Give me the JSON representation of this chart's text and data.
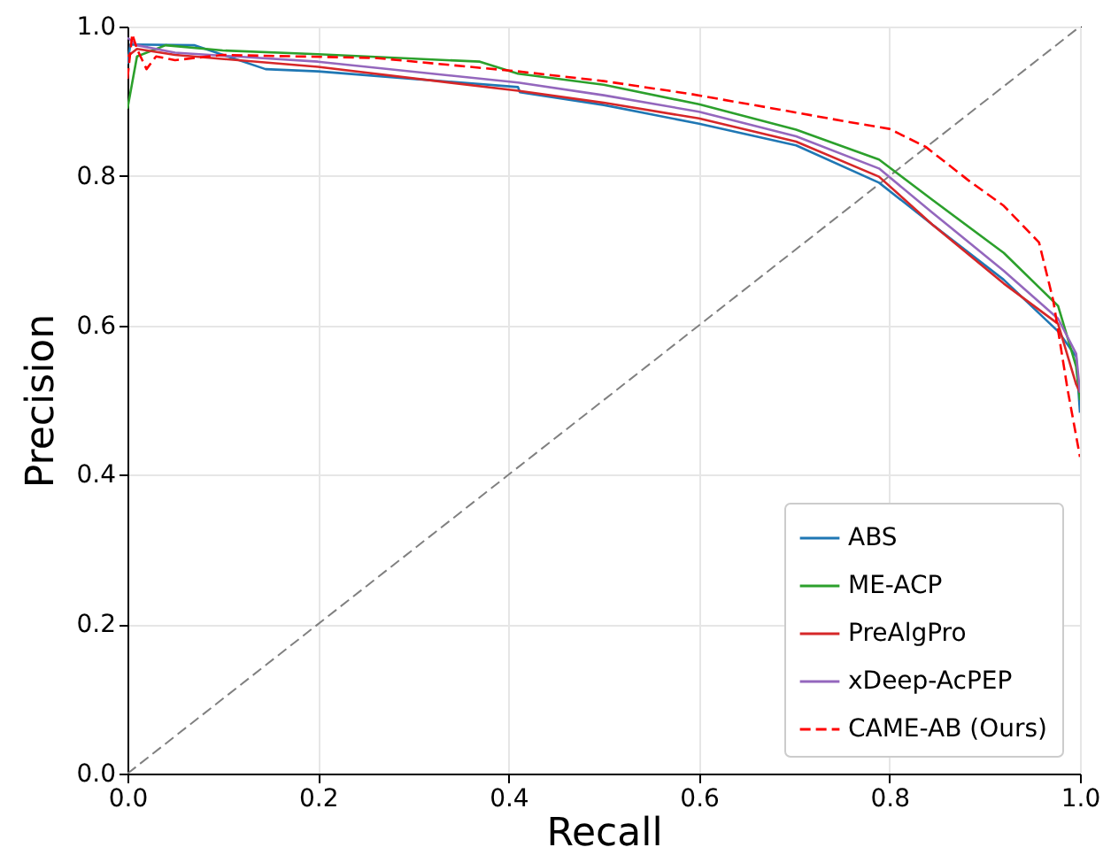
{
  "chart_data": {
    "type": "line",
    "xlabel": "Recall",
    "ylabel": "Precision",
    "xlim": [
      0,
      1
    ],
    "ylim": [
      0,
      1
    ],
    "xticks": [
      {
        "value": 0,
        "label": "0.0"
      },
      {
        "value": 0.2,
        "label": "0.2"
      },
      {
        "value": 0.4,
        "label": "0.4"
      },
      {
        "value": 0.6,
        "label": "0.6"
      },
      {
        "value": 0.8,
        "label": "0.8"
      },
      {
        "value": 1,
        "label": "1.0"
      }
    ],
    "yticks": [
      {
        "value": 0,
        "label": "0.0"
      },
      {
        "value": 0.2,
        "label": "0.2"
      },
      {
        "value": 0.4,
        "label": "0.4"
      },
      {
        "value": 0.6,
        "label": "0.6"
      },
      {
        "value": 0.8,
        "label": "0.8"
      },
      {
        "value": 1,
        "label": "1.0"
      }
    ],
    "grid": true,
    "legend": "bottom right",
    "marker": "none",
    "series": [
      {
        "name": "ABS",
        "color": "#1f77b4",
        "line_style": "solid",
        "x": [
          0,
          0.003,
          0.07,
          0.145,
          0.2,
          0.3,
          0.41,
          0.412,
          0.5,
          0.6,
          0.702,
          0.789,
          0.845,
          0.92,
          0.977,
          0.996,
          1.0
        ],
        "values": [
          0.95,
          0.976,
          0.975,
          0.943,
          0.94,
          0.93,
          0.919,
          0.912,
          0.895,
          0.87,
          0.841,
          0.791,
          0.735,
          0.661,
          0.592,
          0.558,
          0.483
        ]
      },
      {
        "name": "ME-ACP",
        "color": "#2ca02c",
        "line_style": "solid",
        "x": [
          0,
          0.01,
          0.04,
          0.1,
          0.2,
          0.37,
          0.41,
          0.5,
          0.6,
          0.702,
          0.789,
          0.845,
          0.92,
          0.977,
          0.996,
          1.0
        ],
        "values": [
          0.89,
          0.96,
          0.975,
          0.968,
          0.963,
          0.953,
          0.937,
          0.922,
          0.896,
          0.862,
          0.822,
          0.768,
          0.697,
          0.626,
          0.545,
          0.5
        ]
      },
      {
        "name": "PreAlgPro",
        "color": "#d62728",
        "line_style": "solid",
        "x": [
          0,
          0.01,
          0.05,
          0.2,
          0.41,
          0.5,
          0.6,
          0.702,
          0.789,
          0.845,
          0.92,
          0.977,
          0.996,
          1.0
        ],
        "values": [
          0.96,
          0.97,
          0.962,
          0.946,
          0.914,
          0.898,
          0.877,
          0.846,
          0.799,
          0.735,
          0.656,
          0.602,
          0.521,
          0.51
        ]
      },
      {
        "name": "xDeep-AcPEP",
        "color": "#9467bd",
        "line_style": "solid",
        "x": [
          0,
          0.01,
          0.05,
          0.2,
          0.41,
          0.5,
          0.6,
          0.702,
          0.789,
          0.845,
          0.92,
          0.977,
          0.996,
          1.0
        ],
        "values": [
          0.985,
          0.975,
          0.965,
          0.953,
          0.925,
          0.908,
          0.886,
          0.853,
          0.81,
          0.751,
          0.673,
          0.609,
          0.562,
          0.51
        ]
      },
      {
        "name": "CAME-AB (Ours)",
        "color": "#ff0000",
        "line_style": "dashed",
        "x": [
          0,
          0.005,
          0.01,
          0.02,
          0.03,
          0.05,
          0.1,
          0.26,
          0.41,
          0.5,
          0.59,
          0.684,
          0.758,
          0.8,
          0.838,
          0.883,
          0.92,
          0.957,
          0.972,
          0.987,
          1.0
        ],
        "values": [
          0.93,
          0.99,
          0.97,
          0.943,
          0.96,
          0.955,
          0.962,
          0.958,
          0.94,
          0.927,
          0.91,
          0.889,
          0.872,
          0.863,
          0.839,
          0.794,
          0.76,
          0.711,
          0.633,
          0.514,
          0.424
        ]
      },
      {
        "color": "#808080",
        "line_style": "dashed",
        "x": [
          0,
          1
        ],
        "values": [
          0,
          1
        ]
      }
    ]
  }
}
